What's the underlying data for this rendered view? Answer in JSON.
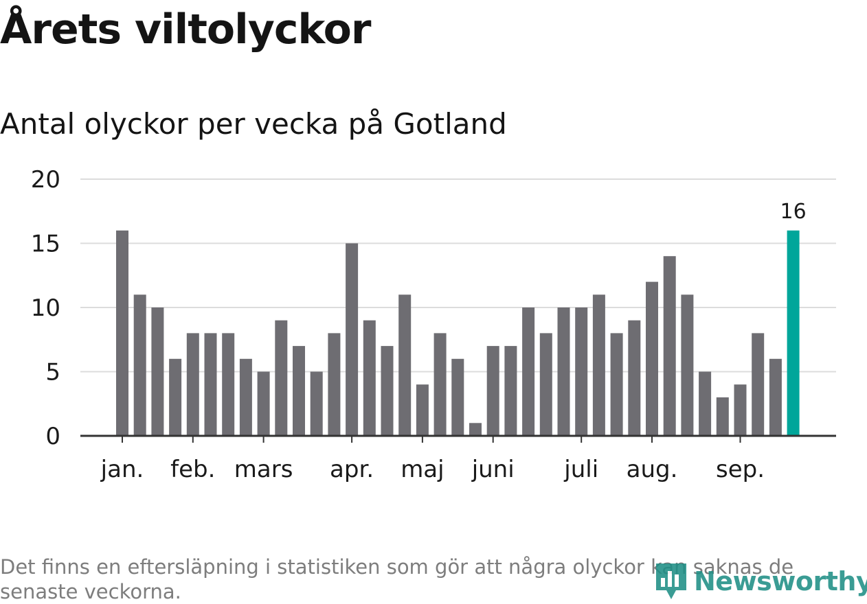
{
  "header": {
    "title": "Årets viltolyckor",
    "subtitle": "Antal olyckor per vecka på Gotland"
  },
  "footer": {
    "note": "Det finns en eftersläpning i statistiken som gör att några olyckor kan saknas de senaste veckorna.",
    "brand": "Newsworthy"
  },
  "colors": {
    "bar": "#6e6d72",
    "highlight": "#00a69a",
    "grid": "#dcdcdc",
    "axis": "#333333",
    "text": "#1a1a1a"
  },
  "chart_data": {
    "type": "bar",
    "title": "Antal olyckor per vecka på Gotland",
    "xlabel": "",
    "ylabel": "",
    "ylim": [
      0,
      20
    ],
    "yticks": [
      0,
      5,
      10,
      15,
      20
    ],
    "grid": true,
    "values": [
      16,
      11,
      10,
      6,
      8,
      8,
      8,
      6,
      5,
      9,
      7,
      5,
      8,
      15,
      9,
      7,
      11,
      4,
      8,
      6,
      1,
      7,
      7,
      10,
      8,
      10,
      10,
      11,
      8,
      9,
      12,
      14,
      11,
      5,
      3,
      4,
      8,
      6,
      16
    ],
    "highlight_index": 38,
    "highlight_label": "16",
    "month_ticks": [
      {
        "label": "jan.",
        "index": 0
      },
      {
        "label": "feb.",
        "index": 4
      },
      {
        "label": "mars",
        "index": 8
      },
      {
        "label": "apr.",
        "index": 13
      },
      {
        "label": "maj",
        "index": 17
      },
      {
        "label": "juni",
        "index": 21
      },
      {
        "label": "juli",
        "index": 26
      },
      {
        "label": "aug.",
        "index": 30
      },
      {
        "label": "sep.",
        "index": 35
      }
    ]
  }
}
